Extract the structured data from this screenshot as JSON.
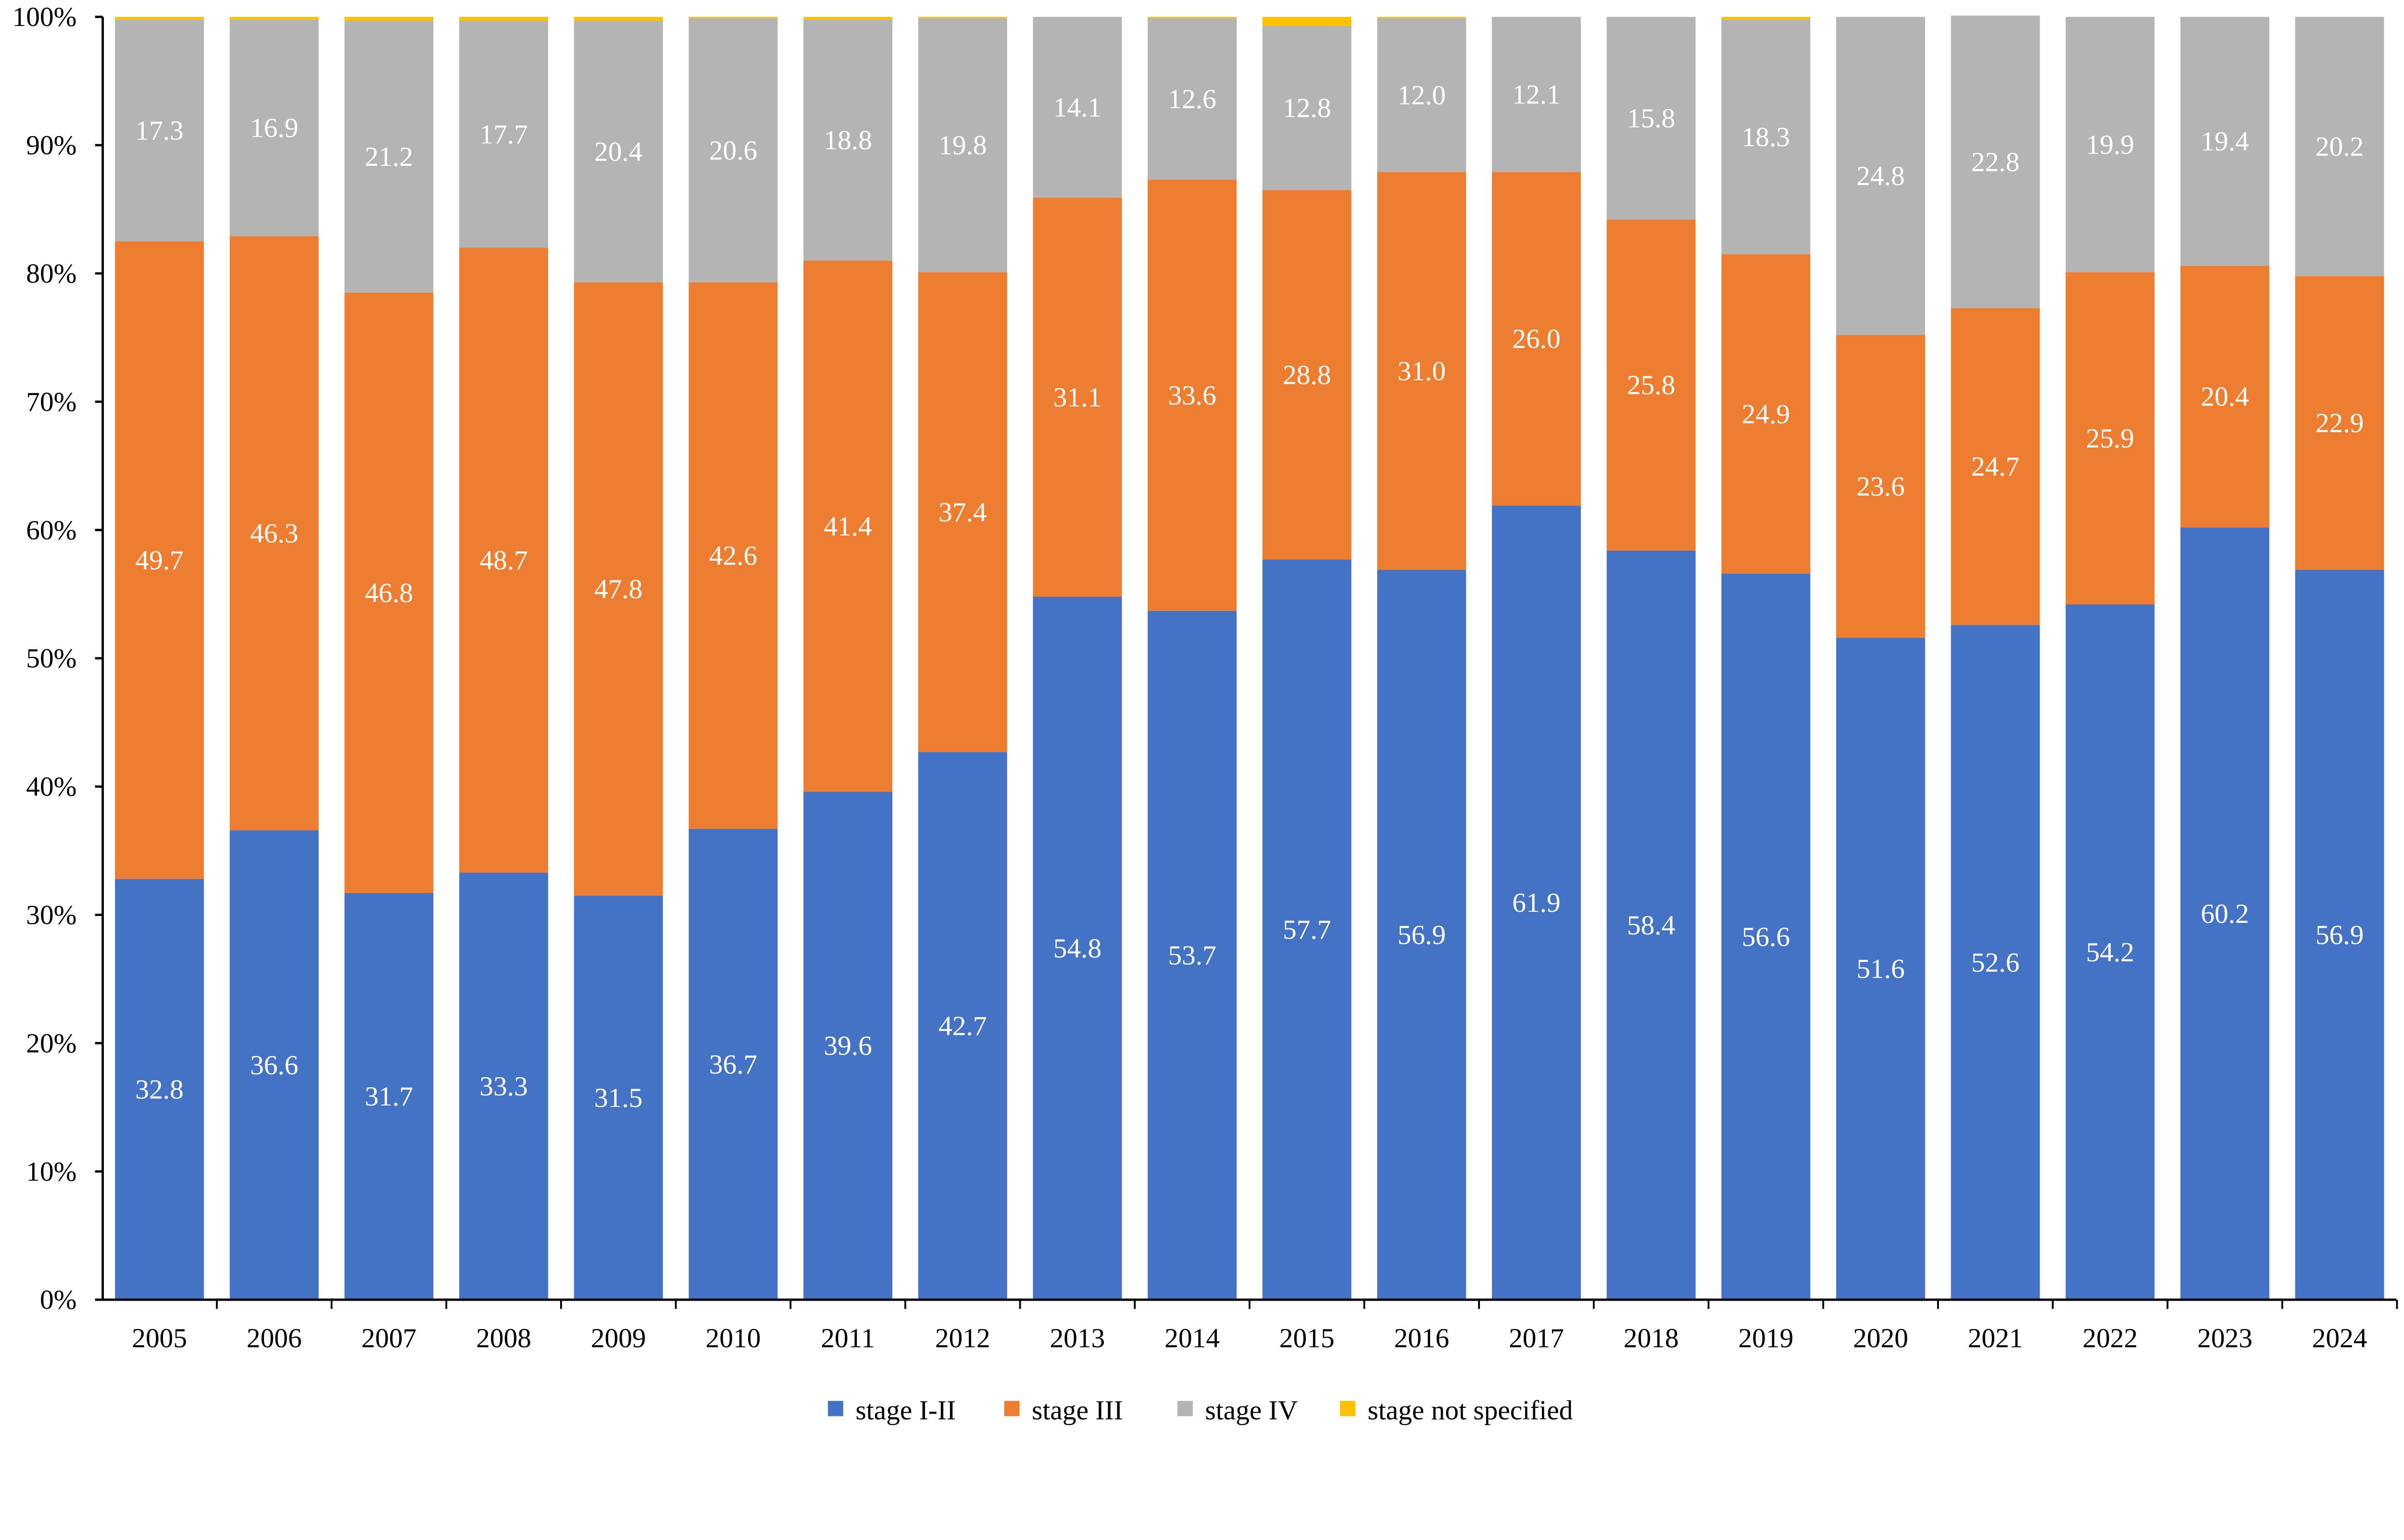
{
  "chart_data": {
    "type": "bar",
    "stacked": true,
    "title": "",
    "xlabel": "",
    "ylabel": "",
    "ylim": [
      0,
      100
    ],
    "yticks": [
      "0%",
      "10%",
      "20%",
      "30%",
      "40%",
      "50%",
      "60%",
      "70%",
      "80%",
      "90%",
      "100%"
    ],
    "legend_position": "bottom",
    "grid": false,
    "categories": [
      "2005",
      "2006",
      "2007",
      "2008",
      "2009",
      "2010",
      "2011",
      "2012",
      "2013",
      "2014",
      "2015",
      "2016",
      "2017",
      "2018",
      "2019",
      "2020",
      "2021",
      "2022",
      "2023",
      "2024"
    ],
    "series": [
      {
        "name": "stage I-II",
        "color": "#4472C4",
        "labeled": true,
        "values": [
          32.8,
          36.6,
          31.7,
          33.3,
          31.5,
          36.7,
          39.6,
          42.7,
          54.8,
          53.7,
          57.7,
          56.9,
          61.9,
          58.4,
          56.6,
          51.6,
          52.6,
          54.2,
          60.2,
          56.9
        ]
      },
      {
        "name": "stage III",
        "color": "#ED7D31",
        "labeled": true,
        "values": [
          49.7,
          46.3,
          46.8,
          48.7,
          47.8,
          42.6,
          41.4,
          37.4,
          31.1,
          33.6,
          28.8,
          31.0,
          26.0,
          25.8,
          24.9,
          23.6,
          24.7,
          25.9,
          20.4,
          22.9
        ]
      },
      {
        "name": "stage IV",
        "color": "#B4B4B4",
        "labeled": true,
        "values": [
          17.3,
          16.9,
          21.2,
          17.7,
          20.4,
          20.6,
          18.8,
          19.8,
          14.1,
          12.6,
          12.8,
          12.0,
          12.1,
          15.8,
          18.3,
          24.8,
          22.8,
          19.9,
          19.4,
          20.2
        ]
      },
      {
        "name": "stage not specified",
        "color": "#FFC000",
        "labeled": false,
        "values": [
          0.2,
          0.2,
          0.3,
          0.3,
          0.3,
          0.1,
          0.2,
          0.1,
          0,
          0.1,
          0.7,
          0.1,
          0,
          0,
          0.2,
          0,
          0,
          0,
          0,
          0
        ]
      }
    ]
  }
}
